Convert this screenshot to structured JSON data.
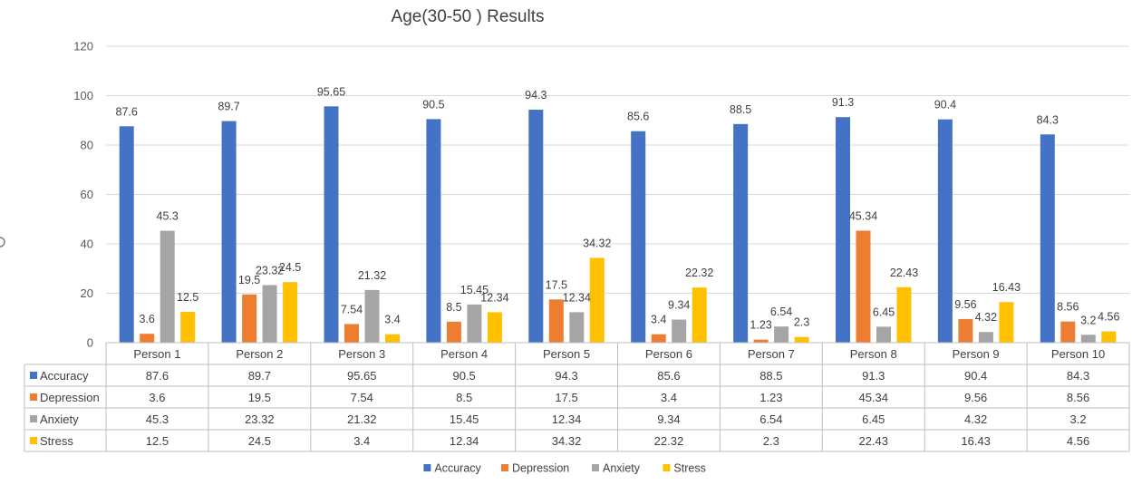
{
  "chart_data": {
    "type": "bar",
    "title": "Age(30-50 ) Results",
    "categories": [
      "Person 1",
      "Person 2",
      "Person 3",
      "Person 4",
      "Person 5",
      "Person 6",
      "Person 7",
      "Person 8",
      "Person 9",
      "Person 10"
    ],
    "series": [
      {
        "name": "Accuracy",
        "color": "#4472c4",
        "values": [
          87.6,
          89.7,
          95.65,
          90.5,
          94.3,
          85.6,
          88.5,
          91.3,
          90.4,
          84.3
        ]
      },
      {
        "name": "Depression",
        "color": "#ed7d31",
        "values": [
          3.6,
          19.5,
          7.54,
          8.5,
          17.5,
          3.4,
          1.23,
          45.34,
          9.56,
          8.56
        ]
      },
      {
        "name": "Anxiety",
        "color": "#a5a5a5",
        "values": [
          45.3,
          23.32,
          21.32,
          15.45,
          12.34,
          9.34,
          6.54,
          6.45,
          4.32,
          3.2
        ]
      },
      {
        "name": "Stress",
        "color": "#ffc000",
        "values": [
          12.5,
          24.5,
          3.4,
          12.34,
          34.32,
          22.32,
          2.3,
          22.43,
          16.43,
          4.56
        ]
      }
    ],
    "ylim": [
      0,
      120
    ],
    "yticks": [
      0,
      20,
      40,
      60,
      80,
      100,
      120
    ],
    "grid": true,
    "data_table": true,
    "legend": "bottom"
  }
}
